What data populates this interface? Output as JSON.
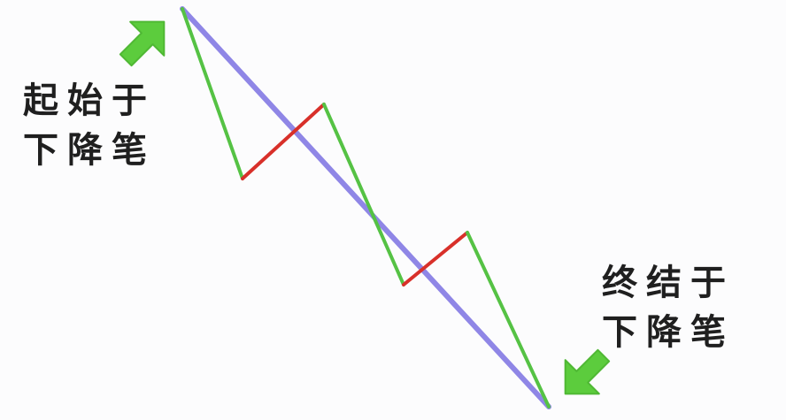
{
  "labels": {
    "start": {
      "line1": "起始于",
      "line2": "下降笔"
    },
    "end": {
      "line1": "终结于",
      "line2": "下降笔"
    }
  },
  "colors": {
    "trend_line": "#8f86e6",
    "down_stroke": "#55c244",
    "up_stroke": "#d8302a",
    "arrow": "#5ccc3d",
    "text": "#1f1f1f"
  },
  "icons": {
    "start_arrow": "arrow-down-right-icon",
    "end_arrow": "arrow-down-right-icon"
  }
}
